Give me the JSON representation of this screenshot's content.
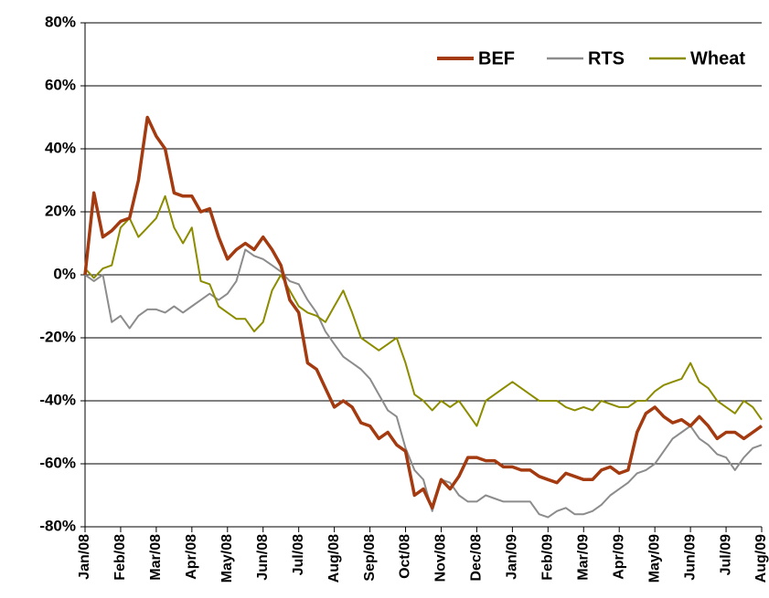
{
  "chart_data": {
    "type": "line",
    "categories": [
      "Jan/08",
      null,
      null,
      null,
      "Feb/08",
      null,
      null,
      null,
      "Mar/08",
      null,
      null,
      null,
      "Apr/08",
      null,
      null,
      null,
      "May/08",
      null,
      null,
      null,
      "Jun/08",
      null,
      null,
      null,
      "Jul/08",
      null,
      null,
      null,
      "Aug/08",
      null,
      null,
      null,
      "Sep/08",
      null,
      null,
      null,
      "Oct/08",
      null,
      null,
      null,
      "Nov/08",
      null,
      null,
      null,
      "Dec/08",
      null,
      null,
      null,
      "Jan/09",
      null,
      null,
      null,
      "Feb/09",
      null,
      null,
      null,
      "Mar/09",
      null,
      null,
      null,
      "Apr/09",
      null,
      null,
      null,
      "May/09",
      null,
      null,
      null,
      "Jun/09",
      null,
      null,
      null,
      "Jul/09",
      null,
      null,
      null,
      "Aug/09"
    ],
    "series": [
      {
        "name": "BEF",
        "color": "#a33a10",
        "values": [
          0,
          26,
          12,
          14,
          17,
          18,
          30,
          50,
          44,
          40,
          26,
          25,
          25,
          20,
          21,
          12,
          5,
          8,
          10,
          8,
          12,
          8,
          3,
          -8,
          -12,
          -28,
          -30,
          -36,
          -42,
          -40,
          -42,
          -47,
          -48,
          -52,
          -50,
          -54,
          -56,
          -70,
          -68,
          -74,
          -65,
          -68,
          -64,
          -58,
          -58,
          -59,
          -59,
          -61,
          -61,
          -62,
          -62,
          -64,
          -65,
          -66,
          -63,
          -64,
          -65,
          -65,
          -62,
          -61,
          -63,
          -62,
          -50,
          -44,
          -42,
          -45,
          -47,
          -46,
          -48,
          -45,
          -48,
          -52,
          -50,
          -50,
          -52,
          -50,
          -48
        ]
      },
      {
        "name": "RTS",
        "color": "#8c8c8c",
        "values": [
          0,
          -2,
          0,
          -15,
          -13,
          -17,
          -13,
          -11,
          -11,
          -12,
          -10,
          -12,
          -10,
          -8,
          -6,
          -8,
          -6,
          -2,
          8,
          6,
          5,
          3,
          1,
          -2,
          -3,
          -8,
          -12,
          -18,
          -22,
          -26,
          -28,
          -30,
          -33,
          -38,
          -43,
          -45,
          -55,
          -62,
          -65,
          -75,
          -65,
          -66,
          -70,
          -72,
          -72,
          -70,
          -71,
          -72,
          -72,
          -72,
          -72,
          -76,
          -77,
          -75,
          -74,
          -76,
          -76,
          -75,
          -73,
          -70,
          -68,
          -66,
          -63,
          -62,
          -60,
          -56,
          -52,
          -50,
          -48,
          -52,
          -54,
          -57,
          -58,
          -62,
          -58,
          -55,
          -54
        ]
      },
      {
        "name": "Wheat",
        "color": "#8c8c00",
        "values": [
          2,
          -1,
          2,
          3,
          15,
          18,
          12,
          15,
          18,
          25,
          15,
          10,
          15,
          -2,
          -3,
          -10,
          -12,
          -14,
          -14,
          -18,
          -15,
          -5,
          0,
          -5,
          -10,
          -12,
          -13,
          -15,
          -10,
          -5,
          -12,
          -20,
          -22,
          -24,
          -22,
          -20,
          -28,
          -38,
          -40,
          -43,
          -40,
          -42,
          -40,
          -44,
          -48,
          -40,
          -38,
          -36,
          -34,
          -36,
          -38,
          -40,
          -40,
          -40,
          -42,
          -43,
          -42,
          -43,
          -40,
          -41,
          -42,
          -42,
          -40,
          -40,
          -37,
          -35,
          -34,
          -33,
          -28,
          -34,
          -36,
          -40,
          -42,
          -44,
          -40,
          -42,
          -46
        ]
      }
    ],
    "ylim": [
      -80,
      80
    ],
    "yticks": [
      {
        "value": -80,
        "label": "-80%"
      },
      {
        "value": -60,
        "label": "-60%"
      },
      {
        "value": -40,
        "label": "-40%"
      },
      {
        "value": -20,
        "label": "-20%"
      },
      {
        "value": 0,
        "label": "0%"
      },
      {
        "value": 20,
        "label": "20%"
      },
      {
        "value": 40,
        "label": "40%"
      },
      {
        "value": 60,
        "label": "60%"
      },
      {
        "value": 80,
        "label": "80%"
      }
    ],
    "grid": true,
    "legend": "top-right"
  }
}
